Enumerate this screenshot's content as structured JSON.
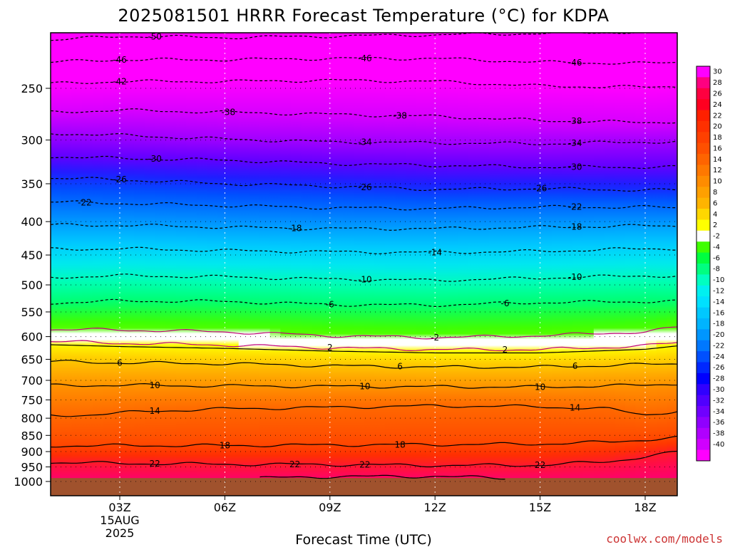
{
  "chart_data": {
    "type": "heatmap",
    "title": "2025081501 HRRR Forecast Temperature (°C) for KDPA",
    "xlabel": "Forecast Time (UTC)",
    "ylabel": "",
    "credit": "coolwx.com/models",
    "x_ticks": [
      {
        "hour": 3,
        "label": "03Z",
        "sublabels": [
          "15AUG",
          "2025"
        ]
      },
      {
        "hour": 6,
        "label": "06Z",
        "sublabels": []
      },
      {
        "hour": 9,
        "label": "09Z",
        "sublabels": []
      },
      {
        "hour": 12,
        "label": "12Z",
        "sublabels": []
      },
      {
        "hour": 15,
        "label": "15Z",
        "sublabels": []
      },
      {
        "hour": 18,
        "label": "18Z",
        "sublabels": []
      }
    ],
    "xlim": [
      1,
      19
    ],
    "y_scale": "log",
    "y_ticks": [
      250,
      300,
      350,
      400,
      450,
      500,
      550,
      600,
      650,
      700,
      750,
      800,
      850,
      900,
      950,
      1000
    ],
    "ylim": [
      200,
      1013
    ],
    "ground_pressure": 988,
    "colorbar": {
      "labels": [
        30,
        28,
        26,
        24,
        22,
        20,
        18,
        16,
        14,
        12,
        10,
        8,
        6,
        4,
        2,
        -2,
        -4,
        -6,
        -8,
        -10,
        -12,
        -14,
        -16,
        -18,
        -20,
        -22,
        -24,
        -26,
        -28,
        -30,
        -32,
        -34,
        -36,
        -38,
        -40
      ],
      "colors": [
        "#ff00ff",
        "#ff0080",
        "#ff0040",
        "#ff0020",
        "#ff2000",
        "#ff3000",
        "#ff4000",
        "#ff5000",
        "#ff6400",
        "#ff7800",
        "#ff8c00",
        "#ffa000",
        "#ffb400",
        "#ffd700",
        "#ffff00",
        "#ffffff",
        "#40ff00",
        "#00ff40",
        "#00ff80",
        "#00ffc0",
        "#00f0f0",
        "#00e0ff",
        "#00c8ff",
        "#00b4ff",
        "#0096ff",
        "#0078ff",
        "#0050ff",
        "#0028ff",
        "#0000ff",
        "#3000ff",
        "#5000ff",
        "#7000ff",
        "#9000ff",
        "#b000ff",
        "#d000ff",
        "#ff00ff"
      ]
    },
    "isotherms": [
      {
        "value": -50,
        "points": [
          [
            1,
            211
          ],
          [
            3,
            208
          ],
          [
            6,
            209
          ],
          [
            9,
            208
          ],
          [
            12,
            207
          ],
          [
            15,
            206
          ],
          [
            18,
            205
          ],
          [
            19,
            205
          ]
        ]
      },
      {
        "value": -46,
        "points": [
          [
            1,
            228
          ],
          [
            3,
            226
          ],
          [
            6,
            226
          ],
          [
            9,
            225
          ],
          [
            12,
            225
          ],
          [
            15,
            228
          ],
          [
            18,
            229
          ],
          [
            19,
            228
          ]
        ]
      },
      {
        "value": -42,
        "points": [
          [
            1,
            246
          ],
          [
            3,
            244
          ],
          [
            6,
            244
          ],
          [
            9,
            243
          ],
          [
            12,
            244
          ],
          [
            15,
            248
          ],
          [
            18,
            249
          ],
          [
            19,
            248
          ]
        ]
      },
      {
        "value": -38,
        "points": [
          [
            1,
            272
          ],
          [
            3,
            270
          ],
          [
            6,
            272
          ],
          [
            9,
            274
          ],
          [
            12,
            276
          ],
          [
            15,
            280
          ],
          [
            18,
            282
          ],
          [
            19,
            281
          ]
        ]
      },
      {
        "value": -34,
        "points": [
          [
            1,
            293
          ],
          [
            3,
            295
          ],
          [
            6,
            299
          ],
          [
            9,
            302
          ],
          [
            12,
            303
          ],
          [
            15,
            304
          ],
          [
            18,
            302
          ],
          [
            19,
            302
          ]
        ]
      },
      {
        "value": -30,
        "points": [
          [
            1,
            318
          ],
          [
            3,
            320
          ],
          [
            6,
            322
          ],
          [
            9,
            326
          ],
          [
            12,
            328
          ],
          [
            15,
            330
          ],
          [
            18,
            330
          ],
          [
            19,
            330
          ]
        ]
      },
      {
        "value": -26,
        "points": [
          [
            1,
            343
          ],
          [
            3,
            345
          ],
          [
            6,
            350
          ],
          [
            9,
            353
          ],
          [
            12,
            357
          ],
          [
            15,
            356
          ],
          [
            18,
            358
          ],
          [
            19,
            358
          ]
        ]
      },
      {
        "value": -22,
        "points": [
          [
            1,
            373
          ],
          [
            3,
            375
          ],
          [
            6,
            378
          ],
          [
            9,
            381
          ],
          [
            12,
            382
          ],
          [
            15,
            380
          ],
          [
            18,
            380
          ],
          [
            19,
            381
          ]
        ]
      },
      {
        "value": -18,
        "points": [
          [
            1,
            405
          ],
          [
            3,
            405
          ],
          [
            6,
            408
          ],
          [
            9,
            410
          ],
          [
            12,
            410
          ],
          [
            15,
            408
          ],
          [
            18,
            406
          ],
          [
            19,
            406
          ]
        ]
      },
      {
        "value": -14,
        "points": [
          [
            1,
            441
          ],
          [
            3,
            440
          ],
          [
            6,
            443
          ],
          [
            9,
            445
          ],
          [
            12,
            446
          ],
          [
            15,
            444
          ],
          [
            18,
            440
          ],
          [
            19,
            440
          ]
        ]
      },
      {
        "value": -10,
        "points": [
          [
            1,
            487
          ],
          [
            3,
            484
          ],
          [
            6,
            486
          ],
          [
            9,
            490
          ],
          [
            12,
            492
          ],
          [
            15,
            488
          ],
          [
            18,
            484
          ],
          [
            19,
            485
          ]
        ]
      },
      {
        "value": -6,
        "points": [
          [
            1,
            533
          ],
          [
            3,
            529
          ],
          [
            6,
            530
          ],
          [
            9,
            536
          ],
          [
            12,
            537
          ],
          [
            15,
            532
          ],
          [
            18,
            530
          ],
          [
            19,
            530
          ]
        ]
      },
      {
        "value": -2,
        "points": [
          [
            1,
            585
          ],
          [
            3,
            586
          ],
          [
            6,
            590
          ],
          [
            9,
            598
          ],
          [
            12,
            602
          ],
          [
            15,
            598
          ],
          [
            18,
            590
          ],
          [
            19,
            580
          ]
        ]
      },
      {
        "value": 2,
        "points": [
          [
            1,
            610
          ],
          [
            3,
            614
          ],
          [
            6,
            618
          ],
          [
            9,
            624
          ],
          [
            12,
            628
          ],
          [
            15,
            628
          ],
          [
            18,
            620
          ],
          [
            19,
            612
          ]
        ]
      },
      {
        "value": 6,
        "points": [
          [
            1,
            655
          ],
          [
            3,
            658
          ],
          [
            6,
            660
          ],
          [
            9,
            665
          ],
          [
            12,
            668
          ],
          [
            15,
            668
          ],
          [
            18,
            662
          ],
          [
            19,
            660
          ]
        ]
      },
      {
        "value": 10,
        "points": [
          [
            1,
            713
          ],
          [
            3,
            712
          ],
          [
            6,
            714
          ],
          [
            9,
            715
          ],
          [
            12,
            716
          ],
          [
            15,
            717
          ],
          [
            18,
            712
          ],
          [
            19,
            708
          ]
        ]
      },
      {
        "value": 14,
        "points": [
          [
            1,
            793
          ],
          [
            2,
            791
          ],
          [
            4,
            780
          ],
          [
            6,
            774
          ],
          [
            9,
            770
          ],
          [
            12,
            766
          ],
          [
            15,
            768
          ],
          [
            17,
            775
          ],
          [
            18,
            790
          ],
          [
            19,
            780
          ]
        ]
      },
      {
        "value": 18,
        "points": [
          [
            1,
            882
          ],
          [
            3,
            881
          ],
          [
            6,
            881
          ],
          [
            9,
            879
          ],
          [
            12,
            878
          ],
          [
            15,
            876
          ],
          [
            17,
            870
          ],
          [
            19,
            856
          ]
        ]
      },
      {
        "value": 22,
        "points": [
          [
            1,
            935
          ],
          [
            3,
            938
          ],
          [
            6,
            941
          ],
          [
            9,
            942
          ],
          [
            12,
            945
          ],
          [
            15,
            944
          ],
          [
            17,
            932
          ],
          [
            19,
            900
          ]
        ]
      },
      {
        "value": 22,
        "points": [
          [
            7,
            988
          ],
          [
            9,
            983
          ],
          [
            12,
            982
          ],
          [
            14,
            988
          ]
        ]
      }
    ],
    "contour_labels": [
      {
        "text": "-50",
        "hour": 4.0
      },
      {
        "text": "-46",
        "hour": 3.0
      },
      {
        "text": "-46",
        "hour": 10.0
      },
      {
        "text": "-46",
        "hour": 16.0
      },
      {
        "text": "-42",
        "hour": 3.0
      },
      {
        "text": "-38",
        "hour": 6.1
      },
      {
        "text": "-38",
        "hour": 11.0
      },
      {
        "text": "-38",
        "hour": 16.0
      },
      {
        "text": "-34",
        "hour": 10.0
      },
      {
        "text": "-34",
        "hour": 16.0
      },
      {
        "text": "-30",
        "hour": 4.0
      },
      {
        "text": "-30",
        "hour": 16.0
      },
      {
        "text": "-26",
        "hour": 3.0
      },
      {
        "text": "-26",
        "hour": 10.0
      },
      {
        "text": "-26",
        "hour": 15.0
      },
      {
        "text": "-22",
        "hour": 2.0
      },
      {
        "text": "-22",
        "hour": 16.0
      },
      {
        "text": "-18",
        "hour": 8.0
      },
      {
        "text": "-18",
        "hour": 16.0
      },
      {
        "text": "-14",
        "hour": 12.0
      },
      {
        "text": "-10",
        "hour": 10.0
      },
      {
        "text": "-10",
        "hour": 16.0
      },
      {
        "text": "-6",
        "hour": 9.0
      },
      {
        "text": "-6",
        "hour": 14.0
      },
      {
        "text": "-2",
        "hour": 12.0
      },
      {
        "text": "2",
        "hour": 9.0
      },
      {
        "text": "2",
        "hour": 14.0
      },
      {
        "text": "6",
        "hour": 3.0
      },
      {
        "text": "6",
        "hour": 11.0
      },
      {
        "text": "6",
        "hour": 16.0
      },
      {
        "text": "10",
        "hour": 4.0
      },
      {
        "text": "10",
        "hour": 10.0
      },
      {
        "text": "10",
        "hour": 15.0
      },
      {
        "text": "14",
        "hour": 4.0
      },
      {
        "text": "14",
        "hour": 16.0
      },
      {
        "text": "18",
        "hour": 6.0
      },
      {
        "text": "18",
        "hour": 11.0
      },
      {
        "text": "22",
        "hour": 4.0
      },
      {
        "text": "22",
        "hour": 10.0
      },
      {
        "text": "22",
        "hour": 15.0
      },
      {
        "text": "22",
        "hour": 8.0
      }
    ]
  }
}
